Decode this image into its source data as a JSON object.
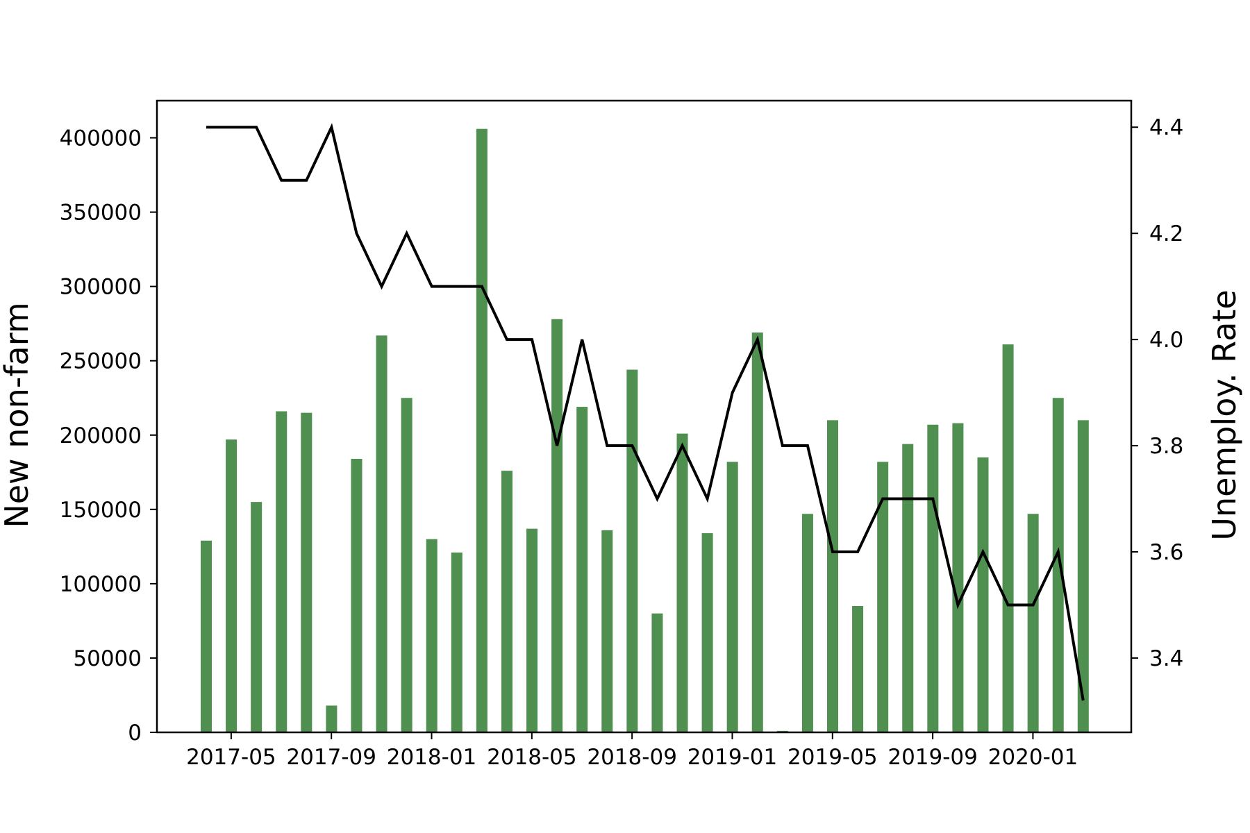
{
  "chart_data": {
    "type": "bar+line",
    "title": "",
    "xlabel": "",
    "ylabel_left": "New non-farm",
    "ylabel_right": "Unemploy. Rate",
    "x": [
      "2017-04",
      "2017-05",
      "2017-06",
      "2017-07",
      "2017-08",
      "2017-09",
      "2017-10",
      "2017-11",
      "2017-12",
      "2018-01",
      "2018-02",
      "2018-03",
      "2018-04",
      "2018-05",
      "2018-06",
      "2018-07",
      "2018-08",
      "2018-09",
      "2018-10",
      "2018-11",
      "2018-12",
      "2019-01",
      "2019-02",
      "2019-03",
      "2019-04",
      "2019-05",
      "2019-06",
      "2019-07",
      "2019-08",
      "2019-09",
      "2019-10",
      "2019-11",
      "2019-12",
      "2020-01",
      "2020-02",
      "2020-03"
    ],
    "x_ticks": [
      "2017-05",
      "2017-09",
      "2018-01",
      "2018-05",
      "2018-09",
      "2019-01",
      "2019-05",
      "2019-09",
      "2020-01"
    ],
    "series": [
      {
        "type": "bar",
        "axis": "left",
        "color": "#4f8f50",
        "values": [
          129000,
          197000,
          155000,
          216000,
          215000,
          18000,
          184000,
          267000,
          225000,
          130000,
          121000,
          406000,
          176000,
          137000,
          278000,
          219000,
          136000,
          244000,
          80000,
          201000,
          134000,
          182000,
          269000,
          1000,
          147000,
          210000,
          85000,
          182000,
          194000,
          207000,
          208000,
          185000,
          261000,
          147000,
          225000,
          210000
        ]
      },
      {
        "type": "line",
        "axis": "right",
        "color": "#000000",
        "values": [
          4.4,
          4.4,
          4.4,
          4.3,
          4.3,
          4.4,
          4.2,
          4.1,
          4.2,
          4.1,
          4.1,
          4.1,
          4.0,
          4.0,
          3.8,
          4.0,
          3.8,
          3.8,
          3.7,
          3.8,
          3.7,
          3.9,
          4.0,
          3.8,
          3.8,
          3.6,
          3.6,
          3.7,
          3.7,
          3.7,
          3.5,
          3.6,
          3.5,
          3.5,
          3.6,
          3.32
        ]
      }
    ],
    "ylim_left": [
      0,
      425000
    ],
    "yticks_left": [
      0,
      50000,
      100000,
      150000,
      200000,
      250000,
      300000,
      350000,
      400000
    ],
    "ylim_right": [
      3.26,
      4.45
    ],
    "yticks_right": [
      "3.4",
      "3.6",
      "3.8",
      "4.0",
      "4.2",
      "4.4"
    ],
    "grid": false,
    "legend": "none"
  }
}
